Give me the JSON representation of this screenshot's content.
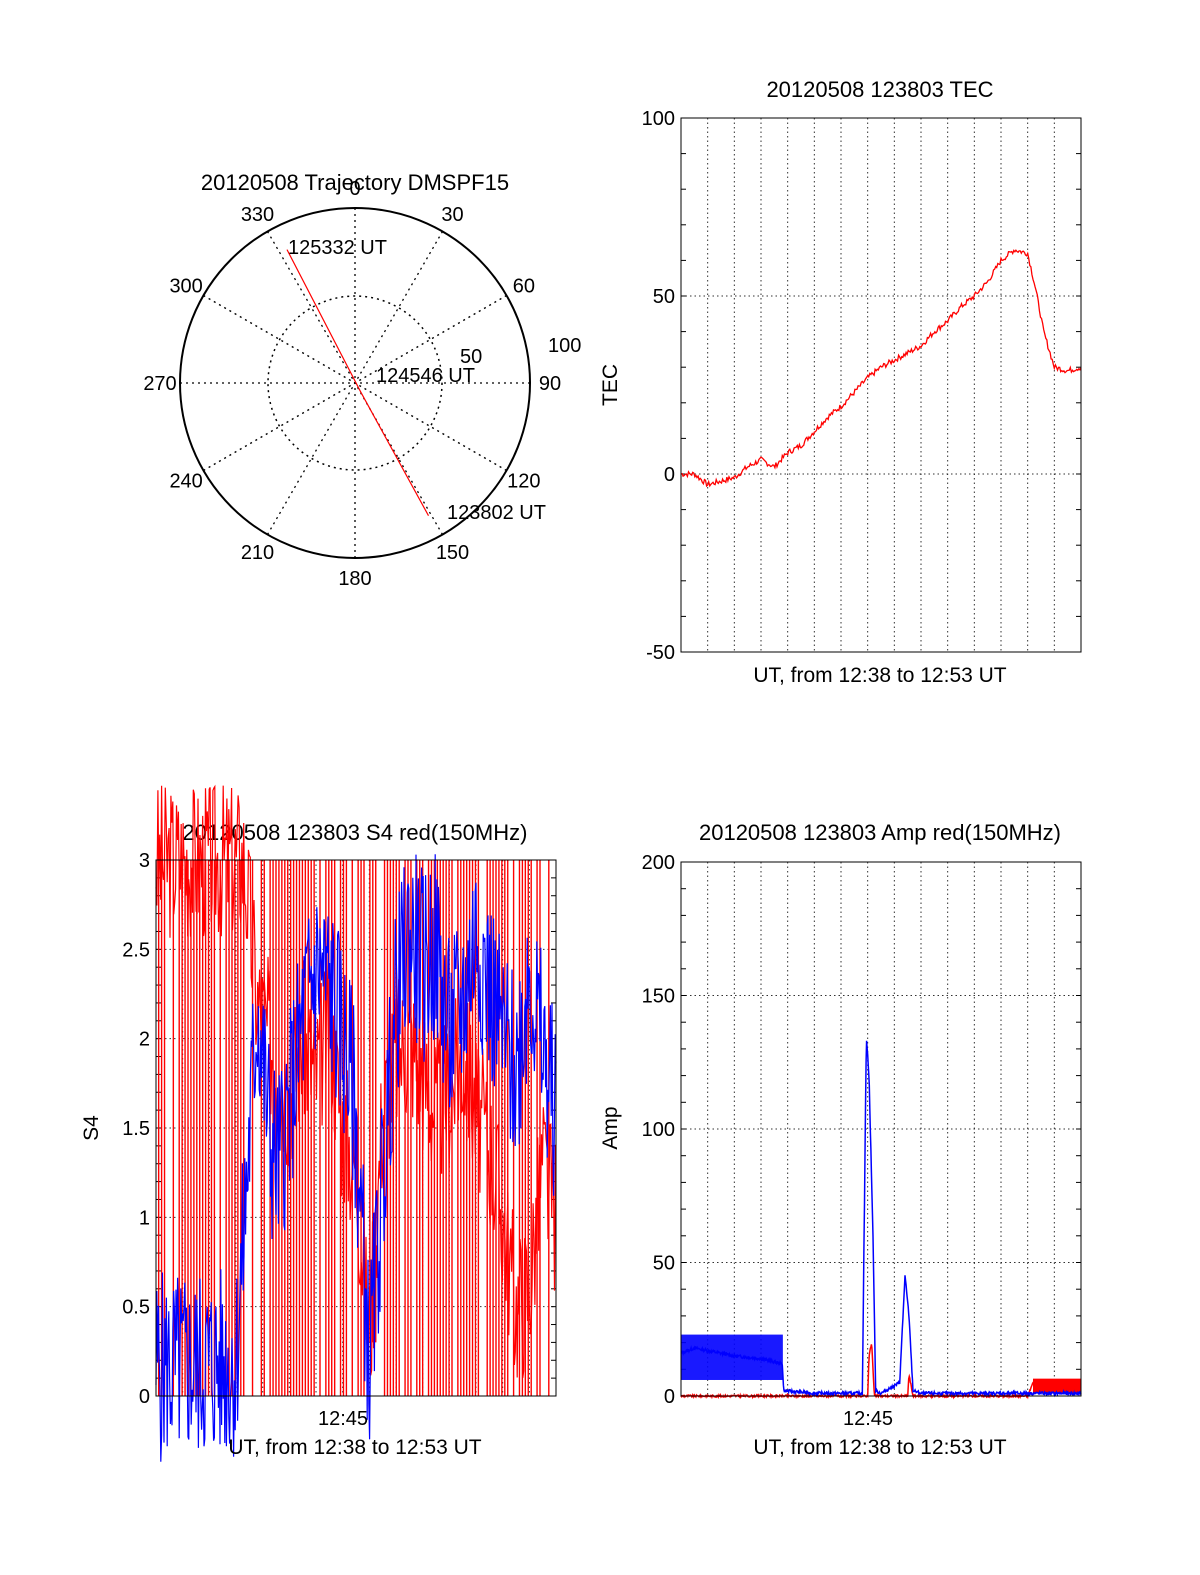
{
  "figure": {
    "colors": {
      "red": "#ff0000",
      "blue": "#0000ff",
      "axes": "#000000"
    }
  },
  "chart_data": [
    {
      "id": "trajectory",
      "type": "polar",
      "title": "20120508 Trajectory DMSPF15",
      "angle_labels": [
        "0",
        "30",
        "60",
        "90",
        "120",
        "150",
        "180",
        "210",
        "240",
        "270",
        "300",
        "330"
      ],
      "radial_labels": [
        "50",
        "100"
      ],
      "track": {
        "color": "#ff0000",
        "points": [
          {
            "label": "125332 UT",
            "azimuth": 333,
            "elevation": 13
          },
          {
            "label": "124546 UT",
            "azimuth": 147,
            "elevation": 85
          },
          {
            "label": "123802 UT",
            "azimuth": 151,
            "elevation": 12
          }
        ]
      }
    },
    {
      "id": "tec",
      "type": "line",
      "title": "20120508 123803 TEC",
      "xlabel": "UT, from 12:38 to 12:53 UT",
      "ylabel": "TEC",
      "xlim": [
        "12:38",
        "12:53"
      ],
      "ylim": [
        -50,
        100
      ],
      "yticks": [
        "-50",
        "0",
        "50",
        "100"
      ],
      "grid": true,
      "series": [
        {
          "color": "#ff0000",
          "x_minutes_after_1238": [
            0,
            0.5,
            1.0,
            1.5,
            2.0,
            2.5,
            3.0,
            3.5,
            4.0,
            4.5,
            5.0,
            5.5,
            6.0,
            6.5,
            7.0,
            7.5,
            8.0,
            8.5,
            9.0,
            9.5,
            10.0,
            10.5,
            11.0,
            11.5,
            12.0,
            12.5,
            13.0,
            13.3,
            13.6,
            14.0,
            14.5,
            15.0
          ],
          "values": [
            0,
            0,
            -3,
            -2,
            -1,
            2,
            4,
            2,
            6,
            8,
            12,
            16,
            19,
            23,
            27,
            30,
            32,
            34,
            36,
            40,
            43,
            47,
            50,
            54,
            60,
            63,
            62,
            52,
            40,
            30,
            29,
            30
          ]
        }
      ]
    },
    {
      "id": "s4",
      "type": "line",
      "title": "20120508 123803 S4 red(150MHz)",
      "xlabel": "UT, from 12:38 to 12:53 UT",
      "xtick_label": "12:45",
      "ylabel": "S4",
      "xlim": [
        "12:38",
        "12:53"
      ],
      "ylim": [
        0,
        3
      ],
      "yticks": [
        "0",
        "0.5",
        "1",
        "1.5",
        "2",
        "2.5",
        "3"
      ],
      "grid": true,
      "series": [
        {
          "color": "#ff0000",
          "x_minutes_after_1238": [
            0,
            3.3,
            3.8,
            4.5,
            5.0,
            5.5,
            6.0,
            6.5,
            7.0,
            7.5,
            8.0,
            8.5,
            9.0,
            9.5,
            10.0,
            10.5,
            11.0,
            11.5,
            12.0,
            12.5,
            13.0,
            13.5,
            14.0,
            14.5,
            15.0
          ],
          "values": [
            3,
            3,
            2.2,
            1.9,
            1.7,
            2.0,
            1.8,
            2.1,
            1.5,
            1.3,
            0.3,
            1.6,
            1.9,
            2.0,
            1.8,
            1.6,
            1.7,
            1.9,
            1.6,
            1.4,
            1.0,
            0.5,
            0.6,
            1.3,
            1.0
          ]
        },
        {
          "color": "#0000ff",
          "x_minutes_after_1238": [
            0,
            1.0,
            2.0,
            3.0,
            3.8,
            4.3,
            4.6,
            5.0,
            5.5,
            6.0,
            6.5,
            7.0,
            7.4,
            7.7,
            8.0,
            8.5,
            9.0,
            9.5,
            10.0,
            10.5,
            11.0,
            11.5,
            12.0,
            12.5,
            13.0,
            13.5,
            14.0,
            14.5,
            15.0
          ],
          "values": [
            0.16,
            0.16,
            0.17,
            0.18,
            2.2,
            1.4,
            1.3,
            1.6,
            2.1,
            2.4,
            2.3,
            2.0,
            1.7,
            1.0,
            0.15,
            1.2,
            2.2,
            2.6,
            2.4,
            2.5,
            2.0,
            2.2,
            2.6,
            2.3,
            2.0,
            1.8,
            2.4,
            1.9,
            1.6
          ]
        }
      ]
    },
    {
      "id": "amp",
      "type": "line",
      "title": "20120508 123803 Amp red(150MHz)",
      "xlabel": "UT, from 12:38 to 12:53 UT",
      "xtick_label": "12:45",
      "ylabel": "Amp",
      "xlim": [
        "12:38",
        "12:53"
      ],
      "ylim": [
        0,
        200
      ],
      "yticks": [
        "0",
        "50",
        "100",
        "150",
        "200"
      ],
      "grid": true,
      "series": [
        {
          "color": "#0000ff",
          "x_minutes_after_1238": [
            0,
            0.5,
            1.0,
            2.0,
            3.0,
            3.8,
            3.85,
            5.0,
            6.0,
            6.8,
            6.95,
            7.05,
            7.2,
            7.3,
            7.5,
            8.2,
            8.4,
            8.55,
            8.7,
            9.0,
            10.0,
            12.0,
            14.0,
            15.0
          ],
          "values": [
            16,
            18,
            17,
            15,
            14,
            12,
            2,
            1,
            1,
            1,
            135,
            120,
            60,
            2,
            1,
            5,
            45,
            30,
            2,
            1,
            1,
            1,
            1,
            1
          ]
        },
        {
          "color": "#ff0000",
          "x_minutes_after_1238": [
            0,
            7.0,
            7.05,
            7.15,
            7.25,
            8.5,
            8.55,
            8.7,
            13.0,
            13.2,
            14.0,
            15.0
          ],
          "values": [
            0,
            0,
            15,
            20,
            0,
            0,
            8,
            0,
            0,
            5,
            5,
            5
          ]
        }
      ]
    }
  ]
}
